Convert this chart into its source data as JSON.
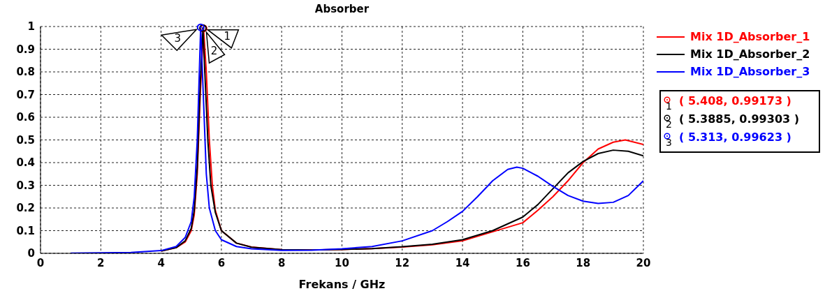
{
  "chart_data": {
    "type": "line",
    "title": "Absorber",
    "xlabel": "Frekans / GHz",
    "xlim": [
      0,
      20
    ],
    "xticks": [
      0,
      2,
      4,
      6,
      8,
      10,
      12,
      14,
      16,
      18,
      20
    ],
    "ylim": [
      0,
      1
    ],
    "yticks": [
      0,
      0.1,
      0.2,
      0.3,
      0.4,
      0.5,
      0.6,
      0.7,
      0.8,
      0.9,
      1
    ],
    "grid": true,
    "legend": "top right",
    "line_style": "solid",
    "series": [
      {
        "name": "Mix 1D_Absorber_1",
        "color": "#ff0000",
        "x": [
          4,
          4.5,
          4.8,
          5,
          5.1,
          5.2,
          5.3,
          5.408,
          5.5,
          5.6,
          5.7,
          5.8,
          6,
          6.5,
          7,
          8,
          9,
          10,
          11,
          12,
          13,
          14,
          15,
          16,
          16.5,
          17,
          17.5,
          18,
          18.5,
          19,
          19.4,
          20
        ],
        "values": [
          0.01,
          0.025,
          0.05,
          0.1,
          0.17,
          0.35,
          0.7,
          0.99173,
          0.8,
          0.5,
          0.3,
          0.19,
          0.1,
          0.045,
          0.028,
          0.016,
          0.015,
          0.017,
          0.021,
          0.028,
          0.038,
          0.055,
          0.095,
          0.135,
          0.19,
          0.25,
          0.32,
          0.4,
          0.46,
          0.49,
          0.5,
          0.48
        ]
      },
      {
        "name": "Mix 1D_Absorber_2",
        "color": "#000000",
        "x": [
          4,
          4.5,
          4.8,
          5,
          5.1,
          5.2,
          5.3,
          5.3885,
          5.45,
          5.55,
          5.65,
          5.8,
          6,
          6.5,
          7,
          8,
          9,
          10,
          11,
          12,
          13,
          14,
          15,
          16,
          16.5,
          17,
          17.5,
          18,
          18.5,
          19,
          19.5,
          20
        ],
        "values": [
          0.01,
          0.025,
          0.055,
          0.11,
          0.19,
          0.38,
          0.75,
          0.99303,
          0.8,
          0.5,
          0.3,
          0.18,
          0.1,
          0.045,
          0.027,
          0.016,
          0.015,
          0.017,
          0.021,
          0.029,
          0.04,
          0.06,
          0.1,
          0.16,
          0.215,
          0.285,
          0.355,
          0.405,
          0.44,
          0.455,
          0.45,
          0.43
        ]
      },
      {
        "name": "Mix 1D_Absorber_3",
        "color": "#0000ff",
        "x": [
          1,
          2,
          3,
          4,
          4.5,
          4.8,
          5,
          5.1,
          5.2,
          5.313,
          5.4,
          5.5,
          5.6,
          5.8,
          6,
          6.5,
          7,
          8,
          9,
          10,
          11,
          12,
          13,
          13.5,
          14,
          14.5,
          15,
          15.5,
          15.8,
          16,
          16.5,
          17,
          17.5,
          18,
          18.5,
          19,
          19.5,
          20
        ],
        "values": [
          0.001,
          0.002,
          0.004,
          0.012,
          0.03,
          0.07,
          0.14,
          0.25,
          0.5,
          0.99623,
          0.7,
          0.35,
          0.2,
          0.1,
          0.06,
          0.03,
          0.02,
          0.013,
          0.014,
          0.02,
          0.03,
          0.055,
          0.1,
          0.14,
          0.185,
          0.25,
          0.32,
          0.37,
          0.38,
          0.375,
          0.34,
          0.295,
          0.255,
          0.23,
          0.22,
          0.225,
          0.255,
          0.32
        ]
      }
    ],
    "annotations": [
      {
        "text": "1",
        "x": 5.408,
        "y": 0.99173
      },
      {
        "text": "2",
        "x": 5.3885,
        "y": 0.99303
      },
      {
        "text": "3",
        "x": 5.313,
        "y": 0.99623
      },
      "( 5.408, 0.99173 )",
      "( 5.3885, 0.99303 )",
      "( 5.313, 0.99623 )"
    ]
  }
}
